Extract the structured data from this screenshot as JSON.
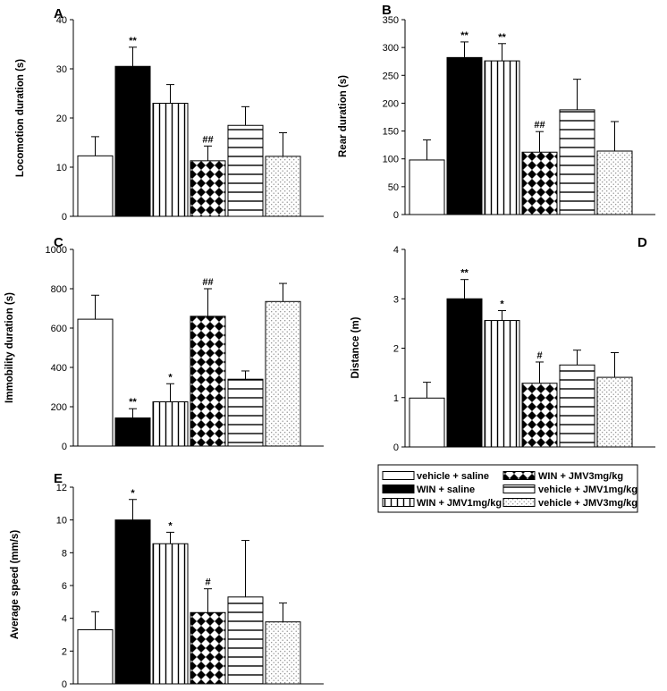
{
  "groups": [
    {
      "label": "vehicle + saline",
      "pattern": "white"
    },
    {
      "label": "WIN + saline",
      "pattern": "black"
    },
    {
      "label": "WIN + JMV1mg/kg",
      "pattern": "vlines"
    },
    {
      "label": "WIN + JMV3mg/kg",
      "pattern": "checker"
    },
    {
      "label": "vehicle + JMV1mg/kg",
      "pattern": "hlines"
    },
    {
      "label": "vehicle + JMV3mg/kg",
      "pattern": "dots"
    }
  ],
  "colors": {
    "bar_black": "#000000",
    "bar_white": "#ffffff",
    "stroke": "#000000",
    "dots": "#888888"
  },
  "chart_data": [
    {
      "id": "A",
      "panel_label": "A",
      "type": "bar",
      "ylabel": "Locomotion duration (s)",
      "ylim": [
        0,
        40
      ],
      "yticks": [
        0,
        10,
        20,
        30,
        40
      ],
      "values": [
        12.3,
        30.5,
        23.0,
        11.3,
        18.5,
        12.2
      ],
      "errors": [
        3.9,
        3.9,
        3.8,
        3.0,
        3.8,
        4.8
      ],
      "annotations": [
        "",
        "**",
        "",
        "##",
        "",
        ""
      ]
    },
    {
      "id": "B",
      "panel_label": "B",
      "type": "bar",
      "ylabel": "Rear duration (s)",
      "ylim": [
        0,
        350
      ],
      "yticks": [
        0,
        50,
        100,
        150,
        200,
        250,
        300,
        350
      ],
      "values": [
        98,
        282,
        276,
        112,
        188,
        114
      ],
      "errors": [
        36,
        28,
        31,
        37,
        55,
        53
      ],
      "annotations": [
        "",
        "**",
        "**",
        "##",
        "",
        ""
      ]
    },
    {
      "id": "C",
      "panel_label": "C",
      "type": "bar",
      "ylabel": "Immobility duration (s)",
      "ylim": [
        0,
        1000
      ],
      "yticks": [
        0,
        200,
        400,
        600,
        800,
        1000
      ],
      "values": [
        645,
        143,
        225,
        660,
        340,
        735
      ],
      "errors": [
        122,
        47,
        92,
        140,
        42,
        92
      ],
      "annotations": [
        "",
        "**",
        "*",
        "##",
        "",
        ""
      ]
    },
    {
      "id": "D",
      "panel_label": "D",
      "type": "bar",
      "ylabel": "Distance (m)",
      "ylim": [
        0,
        4
      ],
      "yticks": [
        0,
        1,
        2,
        3,
        4
      ],
      "values": [
        0.99,
        3.0,
        2.56,
        1.29,
        1.66,
        1.41
      ],
      "errors": [
        0.32,
        0.39,
        0.2,
        0.43,
        0.3,
        0.5
      ],
      "annotations": [
        "",
        "**",
        "*",
        "#",
        "",
        ""
      ]
    },
    {
      "id": "E",
      "panel_label": "E",
      "type": "bar",
      "ylabel": "Average speed (mm/s)",
      "ylim": [
        0,
        12
      ],
      "yticks": [
        0,
        2,
        4,
        6,
        8,
        10,
        12
      ],
      "values": [
        3.3,
        10.0,
        8.55,
        4.35,
        5.3,
        3.78
      ],
      "errors": [
        1.1,
        1.25,
        0.7,
        1.45,
        3.45,
        1.15
      ],
      "annotations": [
        "",
        "*",
        "*",
        "#",
        "",
        ""
      ]
    }
  ]
}
